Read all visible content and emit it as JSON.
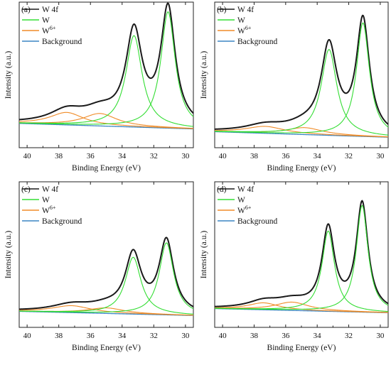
{
  "colors": {
    "w4f": "#1a1a1a",
    "w": "#33dd33",
    "w6": "#f08c28",
    "background": "#3b86c4"
  },
  "chart_data": [
    {
      "type": "line",
      "panel_label": "(a)",
      "xlabel": "Binding Energy (eV)",
      "ylabel": "Intensity (a.u.)",
      "xlim": [
        40.5,
        29.5
      ],
      "x_reversed": true,
      "xticks": [
        40,
        38,
        36,
        34,
        32,
        30
      ],
      "grid": false,
      "legend": "top-left",
      "legend_entries": [
        {
          "label": "W 4f",
          "color_key": "w4f"
        },
        {
          "label": "W",
          "color_key": "w"
        },
        {
          "label": "W",
          "sup": "6+",
          "color_key": "w6"
        },
        {
          "label": "Background",
          "color_key": "background"
        }
      ],
      "series_components": {
        "background": {
          "y_at_40_5": 0.15,
          "y_at_29_5": 0.11
        },
        "W": [
          {
            "center": 33.25,
            "height": 0.66,
            "width": 0.62
          },
          {
            "center": 31.1,
            "height": 0.84,
            "width": 0.55
          }
        ],
        "W6+": [
          {
            "center": 37.5,
            "height": 0.09,
            "width": 1.3
          },
          {
            "center": 35.4,
            "height": 0.09,
            "width": 1.3
          }
        ]
      },
      "ylim": [
        0,
        1
      ]
    },
    {
      "type": "line",
      "panel_label": "(b)",
      "xlabel": "Binding Energy (eV)",
      "ylabel": "Intensity (a.u.)",
      "xlim": [
        40.5,
        29.5
      ],
      "x_reversed": true,
      "xticks": [
        40,
        38,
        36,
        34,
        32,
        30
      ],
      "grid": false,
      "legend": "top-left",
      "legend_entries": [
        {
          "label": "W 4f",
          "color_key": "w4f"
        },
        {
          "label": "W",
          "color_key": "w"
        },
        {
          "label": "W",
          "sup": "6+",
          "color_key": "w6"
        },
        {
          "label": "Background",
          "color_key": "background"
        }
      ],
      "series_components": {
        "background": {
          "y_at_40_5": 0.09,
          "y_at_29_5": 0.05
        },
        "W": [
          {
            "center": 33.25,
            "height": 0.62,
            "width": 0.6
          },
          {
            "center": 31.1,
            "height": 0.82,
            "width": 0.5
          }
        ],
        "W6+": [
          {
            "center": 37.3,
            "height": 0.05,
            "width": 1.5
          },
          {
            "center": 34.8,
            "height": 0.05,
            "width": 1.4
          }
        ]
      },
      "ylim": [
        0,
        1
      ]
    },
    {
      "type": "line",
      "panel_label": "(c)",
      "xlabel": "Binding Energy (eV)",
      "ylabel": "Intensity (a.u.)",
      "xlim": [
        40.5,
        29.5
      ],
      "x_reversed": true,
      "xticks": [
        40,
        38,
        36,
        34,
        32,
        30
      ],
      "grid": false,
      "legend": "top-left",
      "legend_entries": [
        {
          "label": "W 4f",
          "color_key": "w4f"
        },
        {
          "label": "W",
          "color_key": "w"
        },
        {
          "label": "W",
          "sup": "6+",
          "color_key": "w6"
        },
        {
          "label": "Background",
          "color_key": "background"
        }
      ],
      "series_components": {
        "background": {
          "y_at_40_5": 0.09,
          "y_at_29_5": 0.06
        },
        "W": [
          {
            "center": 33.3,
            "height": 0.41,
            "width": 0.6
          },
          {
            "center": 31.2,
            "height": 0.52,
            "width": 0.55
          }
        ],
        "W6+": [
          {
            "center": 37.2,
            "height": 0.05,
            "width": 1.5
          },
          {
            "center": 35.0,
            "height": 0.04,
            "width": 1.4
          }
        ]
      },
      "ylim": [
        0,
        1
      ]
    },
    {
      "type": "line",
      "panel_label": "(d)",
      "xlabel": "Binding Energy (eV)",
      "ylabel": "Intensity (a.u.)",
      "xlim": [
        40.5,
        29.5
      ],
      "x_reversed": true,
      "xticks": [
        40,
        38,
        36,
        34,
        32,
        30
      ],
      "grid": false,
      "legend": "top-left",
      "legend_entries": [
        {
          "label": "W 4f",
          "color_key": "w4f"
        },
        {
          "label": "W",
          "color_key": "w"
        },
        {
          "label": "W",
          "sup": "6+",
          "color_key": "w6"
        },
        {
          "label": "Background",
          "color_key": "background"
        }
      ],
      "series_components": {
        "background": {
          "y_at_40_5": 0.11,
          "y_at_29_5": 0.08
        },
        "W": [
          {
            "center": 33.3,
            "height": 0.58,
            "width": 0.48
          },
          {
            "center": 31.15,
            "height": 0.77,
            "width": 0.45
          }
        ],
        "W6+": [
          {
            "center": 37.4,
            "height": 0.05,
            "width": 1.2
          },
          {
            "center": 35.6,
            "height": 0.06,
            "width": 1.3
          }
        ]
      },
      "ylim": [
        0,
        1
      ]
    }
  ]
}
